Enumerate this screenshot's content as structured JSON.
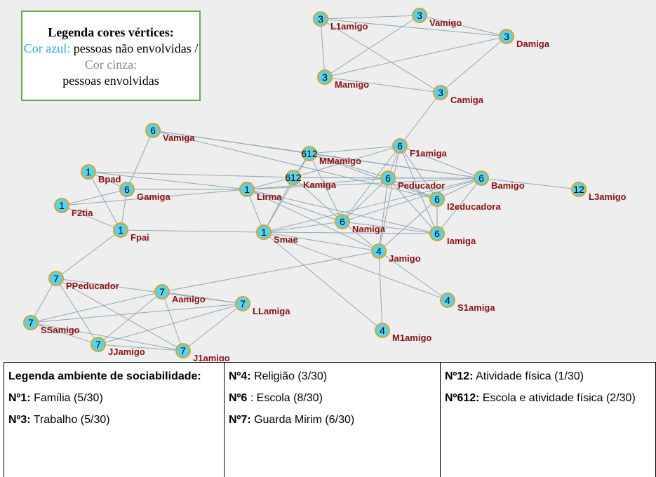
{
  "legend": {
    "title": "Legenda cores vértices:",
    "blue_key": "Cor azul:",
    "blue_text": "pessoas não envolvidas /",
    "gray_key": "Cor cinza:",
    "gray_text": "pessoas envolvidas"
  },
  "nodes": [
    {
      "group": "3",
      "label": "L1amigo"
    },
    {
      "group": "3",
      "label": "Vamigo"
    },
    {
      "group": "3",
      "label": "Damiga"
    },
    {
      "group": "3",
      "label": "Mamigo"
    },
    {
      "group": "3",
      "label": "Camiga"
    },
    {
      "group": "6",
      "label": "Vamiga"
    },
    {
      "group": "612",
      "label": "MMamigo"
    },
    {
      "group": "6",
      "label": "F1amiga"
    },
    {
      "group": "612",
      "label": "Kamiga"
    },
    {
      "group": "6",
      "label": "Peducador"
    },
    {
      "group": "6",
      "label": "Bamigo"
    },
    {
      "group": "12",
      "label": "L3amigo"
    },
    {
      "group": "1",
      "label": "Bpad"
    },
    {
      "group": "6",
      "label": "Gamiga"
    },
    {
      "group": "1",
      "label": "Lirma"
    },
    {
      "group": "6",
      "label": "I2educadora"
    },
    {
      "group": "1",
      "label": "F2tia"
    },
    {
      "group": "6",
      "label": "Namiga"
    },
    {
      "group": "6",
      "label": "Iamiga"
    },
    {
      "group": "1",
      "label": "Fpai"
    },
    {
      "group": "1",
      "label": "Smae"
    },
    {
      "group": "4",
      "label": "Jamigo"
    },
    {
      "group": "7",
      "label": "PPeducador"
    },
    {
      "group": "7",
      "label": "Aamigo"
    },
    {
      "group": "7",
      "label": "LLamiga"
    },
    {
      "group": "4",
      "label": "S1amiga"
    },
    {
      "group": "7",
      "label": "SSamigo"
    },
    {
      "group": "4",
      "label": "M1amigo"
    },
    {
      "group": "7",
      "label": "JJamigo"
    },
    {
      "group": "7",
      "label": "J1amigo"
    }
  ],
  "table": {
    "columns": [
      {
        "heading": "Legenda ambiente de sociabilidade:",
        "items": [
          {
            "key": "Nº1:",
            "text": "Família (5/30)"
          },
          {
            "key": "Nº3:",
            "text": "Trabalho (5/30)"
          }
        ]
      },
      {
        "items": [
          {
            "key": "Nº4:",
            "text": "Religião (3/30)"
          },
          {
            "key": "Nº6",
            "text": ": Escola (8/30)"
          },
          {
            "key": "Nº7:",
            "text": "Guarda Mirim (6/30)"
          }
        ]
      },
      {
        "items": [
          {
            "key": "Nº12:",
            "text": "Atividade física (1/30)"
          },
          {
            "key": "Nº612:",
            "text": "Escola e atividade física (2/30)"
          }
        ]
      }
    ]
  }
}
